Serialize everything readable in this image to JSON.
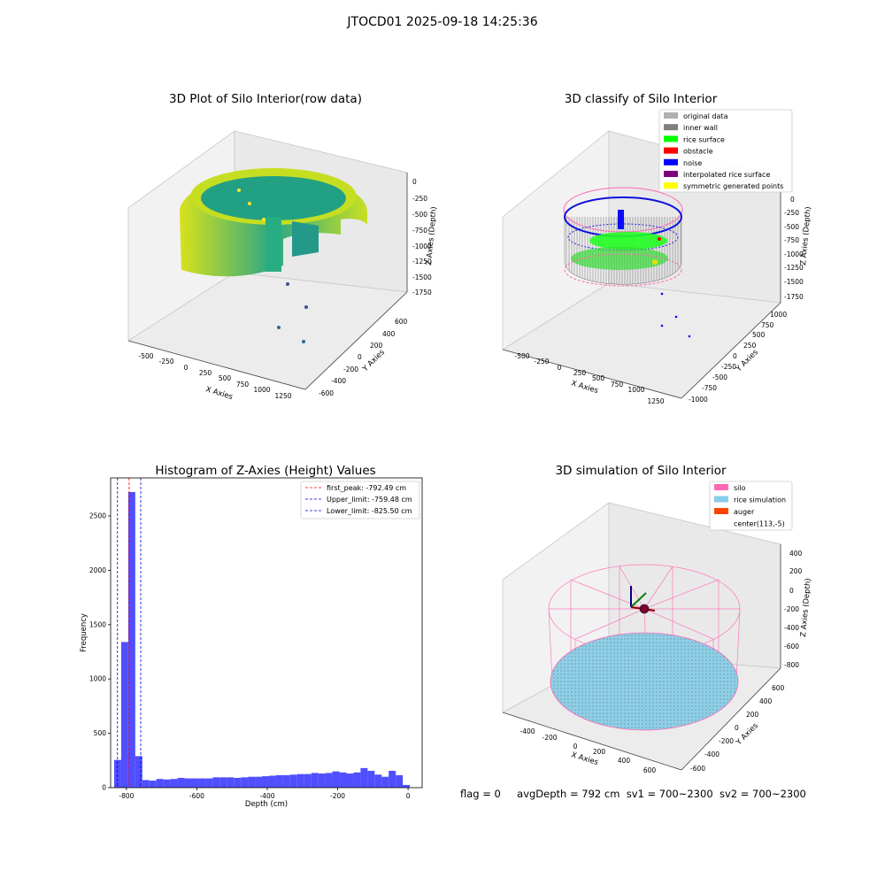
{
  "figure": {
    "suptitle": "JTOCD01 2025-09-18 14:25:36",
    "footer": {
      "flag": "flag = 0",
      "avg_depth": "avgDepth = 792 cm",
      "sv1": "sv1 = 700~2300",
      "sv2": "sv2 = 700~2300"
    }
  },
  "chart_data": [
    {
      "type": "scatter",
      "title": "3D Plot of Silo Interior(row data)",
      "xlabel": "X Axies",
      "ylabel": "Y Axies",
      "zlabel": "Z Axies (Depth)",
      "xticks": [
        "-500",
        "-250",
        "0",
        "250",
        "500",
        "750",
        "1000",
        "1250"
      ],
      "yticks": [
        "600",
        "400",
        "200",
        "0",
        "-200",
        "-400",
        "-600"
      ],
      "zticks": [
        "0",
        "-250",
        "-500",
        "-750",
        "-1000",
        "-1250",
        "-1500",
        "-1750"
      ],
      "xlim": [
        -600,
        1350
      ],
      "ylim": [
        -650,
        700
      ],
      "zlim": [
        -1900,
        50
      ],
      "colormap": "viridis",
      "grid": true
    },
    {
      "type": "scatter",
      "title": "3D classify of Silo Interior",
      "xlabel": "X Axies",
      "ylabel": "Y Axies",
      "zlabel": "Z Axies (Depth)",
      "xticks": [
        "-500",
        "-250",
        "0",
        "250",
        "500",
        "750",
        "1000",
        "1250"
      ],
      "yticks": [
        "1000",
        "750",
        "500",
        "250",
        "0",
        "-250",
        "-500",
        "-750",
        "-1000"
      ],
      "zticks": [
        "0",
        "-250",
        "-500",
        "-750",
        "-1000",
        "-1250",
        "-1500",
        "-1750"
      ],
      "legend": [
        {
          "label": "original data",
          "color": "#b0b0b0"
        },
        {
          "label": "inner wall",
          "color": "#808080"
        },
        {
          "label": "rice surface",
          "color": "#00ff00"
        },
        {
          "label": "obstacle",
          "color": "#ff0000"
        },
        {
          "label": "noise",
          "color": "#0000ff"
        },
        {
          "label": "interpolated rice surface",
          "color": "#800080"
        },
        {
          "label": "symmetric generated points",
          "color": "#ffff00"
        }
      ],
      "legend_position": "top-right",
      "grid": true
    },
    {
      "type": "bar",
      "title": "Histogram of Z-Axies (Height) Values",
      "xlabel": "Depth (cm)",
      "ylabel": "Frequency",
      "xlim": [
        -845,
        40
      ],
      "ylim": [
        0,
        2850
      ],
      "xticks": [
        -800,
        -600,
        -400,
        -200,
        0
      ],
      "yticks": [
        0,
        500,
        1000,
        1500,
        2000,
        2500
      ],
      "bar_color": "#4f4fff",
      "bins": [
        [
          -835,
          -815,
          255
        ],
        [
          -815,
          -795,
          1340
        ],
        [
          -795,
          -775,
          2720
        ],
        [
          -775,
          -755,
          290
        ],
        [
          -755,
          -735,
          70
        ],
        [
          -735,
          -715,
          65
        ],
        [
          -715,
          -695,
          80
        ],
        [
          -695,
          -675,
          75
        ],
        [
          -675,
          -655,
          80
        ],
        [
          -655,
          -635,
          90
        ],
        [
          -635,
          -615,
          85
        ],
        [
          -615,
          -595,
          85
        ],
        [
          -595,
          -575,
          85
        ],
        [
          -575,
          -555,
          85
        ],
        [
          -555,
          -535,
          95
        ],
        [
          -535,
          -515,
          95
        ],
        [
          -515,
          -495,
          95
        ],
        [
          -495,
          -475,
          90
        ],
        [
          -475,
          -455,
          95
        ],
        [
          -455,
          -435,
          100
        ],
        [
          -435,
          -415,
          100
        ],
        [
          -415,
          -395,
          105
        ],
        [
          -395,
          -375,
          110
        ],
        [
          -375,
          -355,
          115
        ],
        [
          -355,
          -335,
          115
        ],
        [
          -335,
          -315,
          120
        ],
        [
          -315,
          -295,
          125
        ],
        [
          -295,
          -275,
          125
        ],
        [
          -275,
          -255,
          135
        ],
        [
          -255,
          -235,
          130
        ],
        [
          -235,
          -215,
          135
        ],
        [
          -215,
          -195,
          150
        ],
        [
          -195,
          -175,
          140
        ],
        [
          -175,
          -155,
          130
        ],
        [
          -155,
          -135,
          140
        ],
        [
          -135,
          -115,
          180
        ],
        [
          -115,
          -95,
          155
        ],
        [
          -95,
          -75,
          120
        ],
        [
          -75,
          -55,
          100
        ],
        [
          -55,
          -35,
          155
        ],
        [
          -35,
          -15,
          115
        ],
        [
          -15,
          5,
          25
        ]
      ],
      "lines": [
        {
          "label": "first_peak: -792.49 cm",
          "value": -792.49,
          "color": "#ff0000"
        },
        {
          "label": "Upper_limit: -759.48 cm",
          "value": -759.48,
          "color": "#0000cc"
        },
        {
          "label": "Lower_limit: -825.50 cm",
          "value": -825.5,
          "color": "#0000cc"
        }
      ],
      "legend_position": "top-right"
    },
    {
      "type": "scatter",
      "title": "3D simulation of Silo Interior",
      "xlabel": "X Axies",
      "ylabel": "Y Axies",
      "zlabel": "Z Axies (Depth)",
      "xticks": [
        "-400",
        "-200",
        "0",
        "200",
        "400",
        "600"
      ],
      "yticks": [
        "600",
        "400",
        "200",
        "0",
        "-200",
        "-400",
        "-600"
      ],
      "zticks": [
        "400",
        "200",
        "0",
        "-200",
        "-400",
        "-600",
        "-800"
      ],
      "legend": [
        {
          "label": "silo",
          "color": "#ff69b4"
        },
        {
          "label": "rice simulation",
          "color": "#87ceeb"
        },
        {
          "label": "auger",
          "color": "#ff4500"
        },
        {
          "label": "center(113,-5)",
          "color": ""
        }
      ],
      "legend_position": "top-right",
      "grid": true
    }
  ]
}
